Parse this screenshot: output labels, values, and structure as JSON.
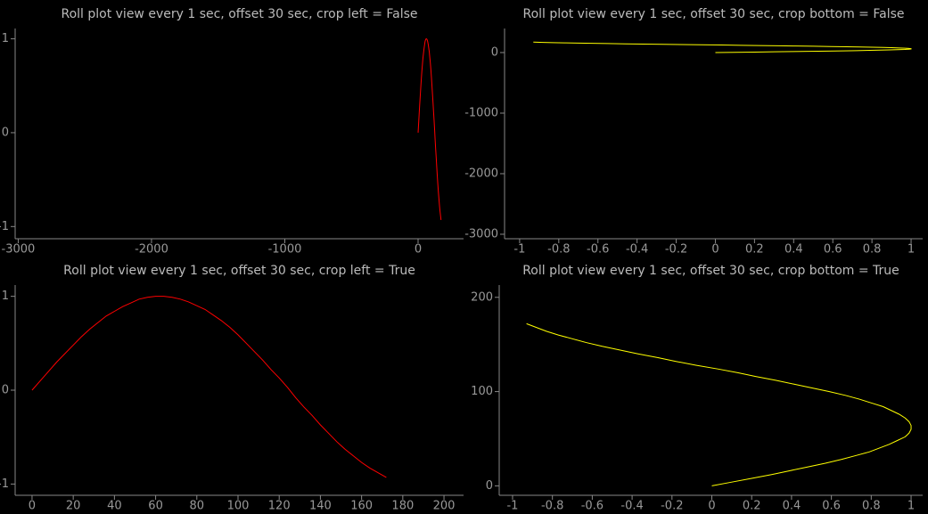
{
  "chart_data": [
    {
      "type": "line",
      "title": "Roll plot view every 1 sec, offset 30 sec, crop left = False",
      "x": [
        0,
        4,
        8,
        12,
        16,
        20,
        24,
        28,
        32,
        36,
        40,
        44,
        48,
        52,
        56,
        60,
        64,
        68,
        72,
        76,
        80,
        84,
        88,
        92,
        96,
        100,
        104,
        108,
        112,
        116,
        120,
        124,
        128,
        132,
        136,
        140,
        144,
        148,
        152,
        156,
        160,
        164,
        168,
        172
      ],
      "series": [
        {
          "color": "#ff0000",
          "values": [
            0,
            0.1,
            0.2,
            0.3,
            0.39,
            0.48,
            0.57,
            0.65,
            0.72,
            0.79,
            0.84,
            0.89,
            0.93,
            0.97,
            0.99,
            1.0,
            1.0,
            0.99,
            0.97,
            0.94,
            0.9,
            0.86,
            0.8,
            0.74,
            0.67,
            0.59,
            0.5,
            0.41,
            0.32,
            0.22,
            0.13,
            0.03,
            -0.08,
            -0.18,
            -0.27,
            -0.37,
            -0.46,
            -0.55,
            -0.63,
            -0.7,
            -0.77,
            -0.83,
            -0.88,
            -0.93
          ]
        }
      ],
      "xlim": [
        -3023,
        341
      ],
      "ylim": [
        -1.13,
        1.11
      ],
      "xticks": [
        -3000,
        -2000,
        -1000,
        0
      ],
      "yticks": [
        -1,
        0,
        1
      ]
    },
    {
      "type": "line",
      "title": "Roll plot view every 1 sec, offset 30 sec, crop bottom = False",
      "x": [
        0,
        0.1,
        0.2,
        0.3,
        0.39,
        0.48,
        0.57,
        0.65,
        0.72,
        0.79,
        0.84,
        0.89,
        0.93,
        0.97,
        0.99,
        1.0,
        1.0,
        0.99,
        0.97,
        0.94,
        0.9,
        0.86,
        0.8,
        0.74,
        0.67,
        0.59,
        0.5,
        0.41,
        0.32,
        0.22,
        0.13,
        0.03,
        -0.08,
        -0.18,
        -0.27,
        -0.37,
        -0.46,
        -0.55,
        -0.63,
        -0.7,
        -0.77,
        -0.83,
        -0.88,
        -0.93
      ],
      "series": [
        {
          "color": "#ffff00",
          "values": [
            0,
            4,
            8,
            12,
            16,
            20,
            24,
            28,
            32,
            36,
            40,
            44,
            48,
            52,
            56,
            60,
            64,
            68,
            72,
            76,
            80,
            84,
            88,
            92,
            96,
            100,
            104,
            108,
            112,
            116,
            120,
            124,
            128,
            132,
            136,
            140,
            144,
            148,
            152,
            156,
            160,
            164,
            168,
            172
          ]
        }
      ],
      "xlim": [
        -1.077,
        1.059
      ],
      "ylim": [
        -3074,
        397
      ],
      "xticks": [
        -1,
        -0.8,
        -0.6,
        -0.4,
        -0.2,
        0,
        0.2,
        0.4,
        0.6,
        0.8,
        1
      ],
      "yticks": [
        -3000,
        -2000,
        -1000,
        0
      ]
    },
    {
      "type": "line",
      "title": "Roll plot view every 1 sec, offset 30 sec, crop left = True",
      "x": [
        0,
        4,
        8,
        12,
        16,
        20,
        24,
        28,
        32,
        36,
        40,
        44,
        48,
        52,
        56,
        60,
        64,
        68,
        72,
        76,
        80,
        84,
        88,
        92,
        96,
        100,
        104,
        108,
        112,
        116,
        120,
        124,
        128,
        132,
        136,
        140,
        144,
        148,
        152,
        156,
        160,
        164,
        168,
        172
      ],
      "series": [
        {
          "color": "#ff0000",
          "values": [
            0,
            0.1,
            0.2,
            0.3,
            0.39,
            0.48,
            0.57,
            0.65,
            0.72,
            0.79,
            0.84,
            0.89,
            0.93,
            0.97,
            0.99,
            1.0,
            1.0,
            0.99,
            0.97,
            0.94,
            0.9,
            0.86,
            0.8,
            0.74,
            0.67,
            0.59,
            0.5,
            0.41,
            0.32,
            0.22,
            0.13,
            0.03,
            -0.08,
            -0.18,
            -0.27,
            -0.37,
            -0.46,
            -0.55,
            -0.63,
            -0.7,
            -0.77,
            -0.83,
            -0.88,
            -0.93
          ]
        }
      ],
      "xlim": [
        -8.2,
        209.5
      ],
      "ylim": [
        -1.12,
        1.12
      ],
      "xticks": [
        0,
        20,
        40,
        60,
        80,
        100,
        120,
        140,
        160,
        180,
        200
      ],
      "yticks": [
        -1,
        0,
        1
      ]
    },
    {
      "type": "line",
      "title": "Roll plot view every 1 sec, offset 30 sec, crop bottom = True",
      "x": [
        0,
        0.1,
        0.2,
        0.3,
        0.39,
        0.48,
        0.57,
        0.65,
        0.72,
        0.79,
        0.84,
        0.89,
        0.93,
        0.97,
        0.99,
        1.0,
        1.0,
        0.99,
        0.97,
        0.94,
        0.9,
        0.86,
        0.8,
        0.74,
        0.67,
        0.59,
        0.5,
        0.41,
        0.32,
        0.22,
        0.13,
        0.03,
        -0.08,
        -0.18,
        -0.27,
        -0.37,
        -0.46,
        -0.55,
        -0.63,
        -0.7,
        -0.77,
        -0.83,
        -0.88,
        -0.93
      ],
      "series": [
        {
          "color": "#ffff00",
          "values": [
            0,
            4,
            8,
            12,
            16,
            20,
            24,
            28,
            32,
            36,
            40,
            44,
            48,
            52,
            56,
            60,
            64,
            68,
            72,
            76,
            80,
            84,
            88,
            92,
            96,
            100,
            104,
            108,
            112,
            116,
            120,
            124,
            128,
            132,
            136,
            140,
            144,
            148,
            152,
            156,
            160,
            164,
            168,
            172
          ]
        }
      ],
      "xlim": [
        -1.067,
        1.058
      ],
      "ylim": [
        -10,
        213
      ],
      "xticks": [
        -1,
        -0.8,
        -0.6,
        -0.4,
        -0.2,
        0,
        0.2,
        0.4,
        0.6,
        0.8,
        1
      ],
      "yticks": [
        0,
        100,
        200
      ]
    }
  ]
}
